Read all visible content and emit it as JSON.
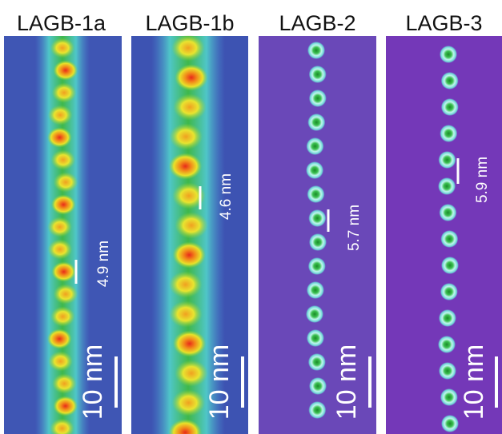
{
  "panels": [
    {
      "title": "LAGB-1a",
      "spacing": "4.9 nm",
      "scale": "10 nm"
    },
    {
      "title": "LAGB-1b",
      "spacing": "4.6 nm",
      "scale": "10 nm"
    },
    {
      "title": "LAGB-2",
      "spacing": "5.7 nm",
      "scale": "10 nm"
    },
    {
      "title": "LAGB-3",
      "spacing": "5.9 nm",
      "scale": "10 nm"
    }
  ]
}
